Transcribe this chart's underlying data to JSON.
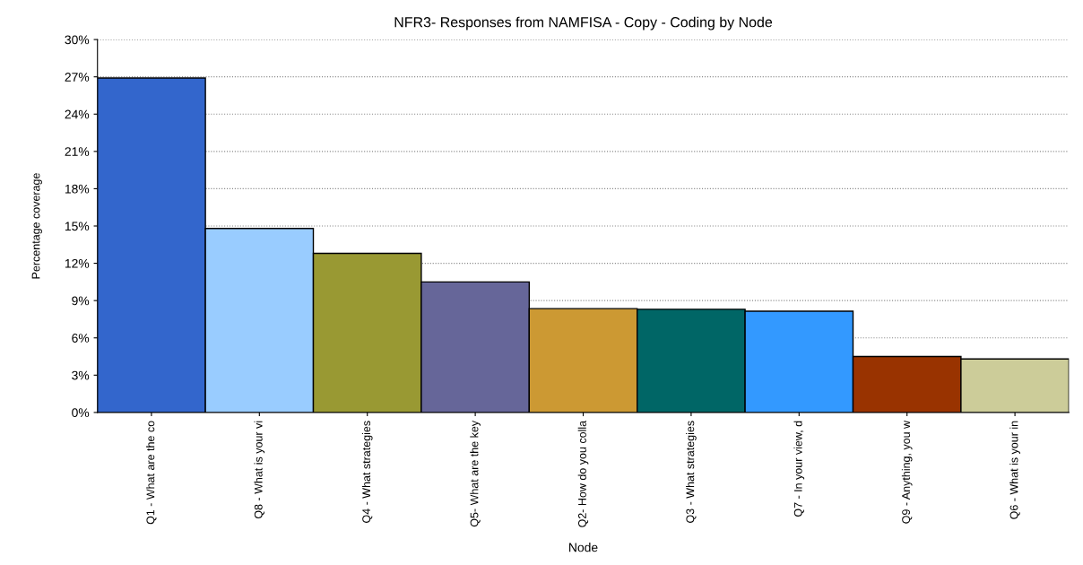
{
  "chart_data": {
    "type": "bar",
    "title": "NFR3- Responses from NAMFISA - Copy - Coding by Node",
    "xlabel": "Node",
    "ylabel": "Percentage coverage",
    "categories": [
      "Q1 - What are the co",
      "Q8 - What is your vi",
      "Q4 - What strategies",
      "Q5- What are the key",
      "Q2- How do you colla",
      "Q3 - What strategies",
      "Q7 - In your view, d",
      "Q9 - Anything, you w",
      "Q6 - What is your in"
    ],
    "values": [
      26.9,
      14.8,
      12.8,
      10.5,
      8.35,
      8.3,
      8.15,
      4.5,
      4.3
    ],
    "colors": [
      "#3366cc",
      "#99ccff",
      "#999933",
      "#666699",
      "#cc9933",
      "#006666",
      "#3399ff",
      "#993300",
      "#cccc99"
    ],
    "ylim": [
      0,
      30
    ],
    "yticks": [
      {
        "value": 0,
        "label": "0%"
      },
      {
        "value": 3,
        "label": "3%"
      },
      {
        "value": 6,
        "label": "6%"
      },
      {
        "value": 9,
        "label": "9%"
      },
      {
        "value": 12,
        "label": "12%"
      },
      {
        "value": 15,
        "label": "15%"
      },
      {
        "value": 18,
        "label": "18%"
      },
      {
        "value": 21,
        "label": "21%"
      },
      {
        "value": 24,
        "label": "24%"
      },
      {
        "value": 27,
        "label": "27%"
      },
      {
        "value": 30,
        "label": "30%"
      }
    ],
    "grid": "y"
  }
}
